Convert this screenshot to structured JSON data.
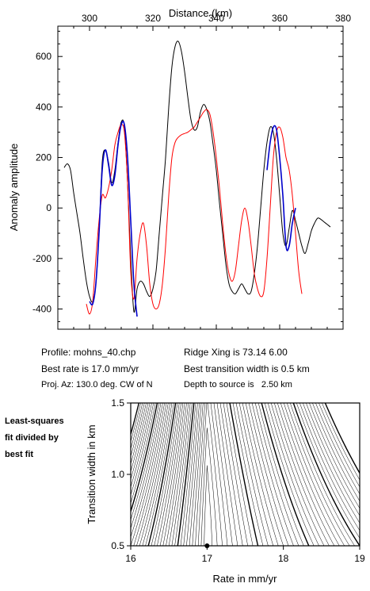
{
  "info": {
    "profile": "Profile: mohns_40.chp",
    "best_rate": "Best rate is 17.0 mm/yr",
    "proj_az": "Proj. Az: 130.0 deg. CW of N",
    "ridge_xing": "Ridge Xing is 73.14 6.00",
    "best_transition": "Best transition width is 0.5 km",
    "depth": "Depth to source is   2.50 km"
  },
  "side_note": [
    "Least-squares",
    "fit divided by",
    "best fit"
  ],
  "colors": {
    "observed": "#000000",
    "model": "#ff0000",
    "fit": "#0000cc",
    "contour": "#000000"
  },
  "chart_data": [
    {
      "type": "line",
      "xlabel": "Distance (km)",
      "ylabel": "Anomaly amplitude",
      "xlim": [
        290,
        380
      ],
      "ylim": [
        -480,
        720
      ],
      "xticks": [
        300,
        320,
        340,
        360,
        380
      ],
      "yticks": [
        -400,
        -200,
        0,
        200,
        400,
        600
      ],
      "series": [
        {
          "color": "#000000",
          "x": [
            292,
            293,
            294,
            295,
            296,
            297,
            298,
            299,
            300,
            301,
            302,
            303,
            304,
            305,
            306,
            307,
            308,
            309,
            310,
            311,
            312,
            313,
            314,
            315,
            316,
            317,
            318,
            319,
            320,
            321,
            322,
            323,
            324,
            325,
            326,
            327,
            328,
            329,
            330,
            331,
            332,
            333,
            334,
            335,
            336,
            337,
            338,
            339,
            340,
            341,
            342,
            343,
            344,
            345,
            346,
            347,
            348,
            349,
            350,
            351,
            352,
            353,
            354,
            355,
            356,
            357,
            358,
            359,
            360,
            361,
            362,
            363,
            364,
            365,
            366,
            367,
            368,
            369,
            370,
            371,
            372,
            373,
            374,
            375,
            376
          ],
          "y": [
            160,
            175,
            150,
            60,
            -20,
            -100,
            -200,
            -290,
            -350,
            -370,
            -300,
            -100,
            180,
            230,
            180,
            100,
            150,
            260,
            340,
            320,
            100,
            -200,
            -410,
            -320,
            -290,
            -300,
            -330,
            -350,
            -320,
            -250,
            -100,
            50,
            200,
            400,
            560,
            640,
            660,
            620,
            540,
            440,
            350,
            310,
            320,
            380,
            410,
            390,
            340,
            250,
            150,
            20,
            -100,
            -220,
            -300,
            -330,
            -340,
            -320,
            -300,
            -320,
            -340,
            -330,
            -260,
            -150,
            0,
            150,
            260,
            320,
            300,
            200,
            50,
            -100,
            -150,
            -80,
            -10,
            -50,
            -100,
            -150,
            -180,
            -140,
            -90,
            -60,
            -40,
            -45,
            -55,
            -65,
            -75
          ]
        },
        {
          "color": "#ff0000",
          "x": [
            299,
            300,
            301,
            302,
            303,
            304,
            305,
            306,
            307,
            308,
            309,
            310,
            311,
            312,
            313,
            314,
            315,
            316,
            317,
            318,
            319,
            320,
            321,
            322,
            323,
            324,
            325,
            326,
            327,
            328,
            329,
            330,
            331,
            332,
            333,
            334,
            335,
            336,
            337,
            338,
            339,
            340,
            341,
            342,
            343,
            344,
            345,
            346,
            347,
            348,
            349,
            350,
            351,
            352,
            353,
            354,
            355,
            356,
            357,
            358,
            359,
            360,
            361,
            362,
            363,
            364,
            365,
            366,
            367
          ],
          "y": [
            -380,
            -420,
            -370,
            -200,
            -50,
            50,
            40,
            80,
            150,
            250,
            300,
            330,
            300,
            100,
            -250,
            -360,
            -200,
            -100,
            -60,
            -150,
            -300,
            -380,
            -400,
            -380,
            -300,
            -150,
            50,
            200,
            260,
            280,
            290,
            295,
            300,
            310,
            320,
            340,
            360,
            380,
            390,
            370,
            300,
            200,
            80,
            -60,
            -180,
            -260,
            -290,
            -250,
            -150,
            -50,
            0,
            -50,
            -150,
            -260,
            -320,
            -350,
            -330,
            -200,
            0,
            200,
            300,
            320,
            280,
            200,
            150,
            50,
            -100,
            -250,
            -340
          ]
        },
        {
          "color": "#0000cc",
          "x": [
            300,
            301,
            302,
            303,
            304,
            305,
            306,
            307,
            308,
            309,
            310,
            311,
            312,
            313,
            314,
            315
          ],
          "y": [
            -370,
            -380,
            -300,
            -100,
            150,
            230,
            170,
            90,
            130,
            250,
            330,
            330,
            200,
            -50,
            -300,
            -430
          ]
        },
        {
          "color": "#0000cc",
          "x": [
            356,
            357,
            358,
            359,
            360,
            361,
            362,
            363,
            364,
            365
          ],
          "y": [
            150,
            260,
            320,
            310,
            200,
            50,
            -150,
            -150,
            -60,
            0
          ]
        }
      ]
    },
    {
      "type": "contour",
      "xlabel": "Rate in mm/yr",
      "ylabel": "Transition width in km",
      "xlim": [
        16,
        19
      ],
      "ylim": [
        0.5,
        1.5
      ],
      "xticks": [
        16,
        17,
        18,
        19
      ],
      "yticks": [
        0.5,
        1.0,
        1.5
      ],
      "xtick_labels": [
        "16",
        "17",
        "18",
        "19"
      ],
      "ytick_labels": [
        "0.5",
        "1.0",
        "1.5"
      ],
      "best_fit": {
        "x": 17.0,
        "y": 0.5
      },
      "levels": [
        1.05,
        1.1,
        1.15,
        1.2,
        1.25,
        1.3,
        1.35,
        1.4,
        1.45,
        1.5,
        1.55,
        1.6,
        1.65,
        1.7,
        1.75,
        1.8,
        1.85,
        1.9,
        1.95,
        2.0,
        2.05,
        2.1,
        2.15,
        2.2,
        2.25,
        2.3,
        2.35,
        2.4,
        2.45,
        2.5,
        2.55,
        2.6,
        2.65,
        2.7,
        2.75,
        2.8,
        2.85,
        2.9,
        2.95,
        3.0
      ],
      "bold_levels": [
        1.5,
        2.0,
        2.5,
        3.0
      ]
    }
  ]
}
